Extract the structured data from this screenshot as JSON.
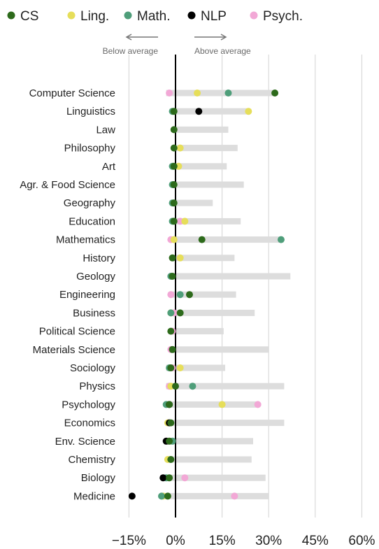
{
  "chart_data": {
    "type": "scatter",
    "x_axis": {
      "ticks": [
        -15,
        0,
        15,
        30,
        45,
        60
      ],
      "tick_labels": [
        "−15%",
        "0%",
        "15%",
        "30%",
        "45%",
        "60%"
      ],
      "xlim": [
        -20,
        60
      ]
    },
    "direction_labels": {
      "left": "Below average",
      "right": "Above average"
    },
    "colors": {
      "CS": "#2d6a1b",
      "Ling.": "#e6de5a",
      "Math.": "#4f9e7a",
      "NLP": "#000000",
      "Psych.": "#f2a8d6",
      "range_bar": "#dddddd",
      "zero_line": "#000000",
      "grid": "#d2d2d2"
    },
    "legend": [
      "CS",
      "Ling.",
      "Math.",
      "NLP",
      "Psych."
    ],
    "categories": [
      "Computer Science",
      "Linguistics",
      "Law",
      "Philosophy",
      "Art",
      "Agr. & Food Science",
      "Geography",
      "Education",
      "Mathematics",
      "History",
      "Geology",
      "Engineering",
      "Business",
      "Political Science",
      "Materials Science",
      "Sociology",
      "Physics",
      "Psychology",
      "Economics",
      "Env. Science",
      "Chemistry",
      "Biology",
      "Medicine"
    ],
    "range_bars": [
      [
        -3,
        32
      ],
      [
        -1,
        24
      ],
      [
        -1,
        17
      ],
      [
        -1,
        20
      ],
      [
        -1,
        16.5
      ],
      [
        -1,
        22
      ],
      [
        -1,
        12
      ],
      [
        -1,
        21
      ],
      [
        -2,
        34
      ],
      [
        -1,
        19
      ],
      [
        -1,
        37
      ],
      [
        -1,
        19.5
      ],
      [
        -2,
        25.5
      ],
      [
        -2,
        15.5
      ],
      [
        -2,
        30
      ],
      [
        -3,
        16
      ],
      [
        -3,
        35
      ],
      [
        -3,
        26
      ],
      [
        -3,
        35
      ],
      [
        -3,
        25
      ],
      [
        -3,
        24.5
      ],
      [
        -4,
        29
      ],
      [
        -5,
        30
      ]
    ],
    "series": [
      {
        "name": "CS",
        "values": [
          32,
          -0.5,
          -0.5,
          -0.5,
          -0.5,
          -0.5,
          -0.5,
          -0.5,
          8.5,
          -1,
          -1,
          4.5,
          1.5,
          -1.5,
          -1,
          -1.5,
          0,
          -2,
          -1.5,
          -2,
          -1.5,
          -2,
          -2.5
        ]
      },
      {
        "name": "Ling.",
        "values": [
          7,
          23.5,
          null,
          1.5,
          1,
          null,
          null,
          3,
          -0.5,
          1.5,
          null,
          null,
          -1.5,
          null,
          null,
          1.5,
          -1.5,
          15,
          -2.5,
          null,
          -2.5,
          null,
          -4
        ]
      },
      {
        "name": "Math.",
        "values": [
          17,
          -1,
          null,
          null,
          -1,
          -1,
          -1,
          -1,
          34,
          null,
          -1.5,
          1.5,
          -1.5,
          null,
          null,
          -2,
          5.5,
          -3,
          null,
          -1,
          null,
          -3,
          -4.5
        ]
      },
      {
        "name": "NLP",
        "values": [
          null,
          7.5,
          null,
          null,
          null,
          null,
          null,
          null,
          null,
          null,
          null,
          null,
          null,
          null,
          null,
          null,
          null,
          -2,
          -2,
          -3,
          null,
          -4,
          -14
        ]
      },
      {
        "name": "Psych.",
        "values": [
          -2,
          null,
          null,
          null,
          null,
          null,
          null,
          1.5,
          -1.5,
          null,
          -1.5,
          -1.5,
          -0.5,
          -1,
          -1.5,
          -1,
          -2,
          26.5,
          -2,
          -2.5,
          null,
          3,
          19
        ]
      }
    ]
  }
}
